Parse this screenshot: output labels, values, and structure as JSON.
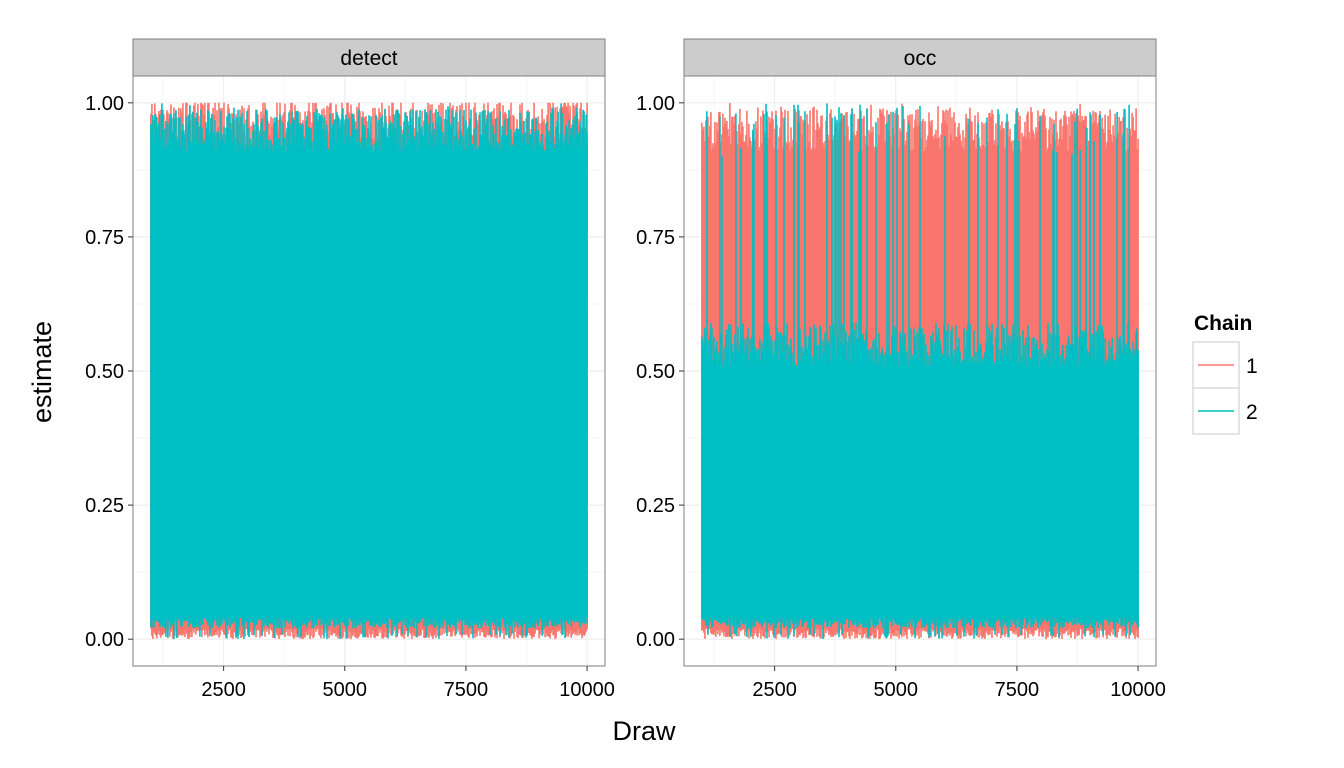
{
  "chart_data": {
    "type": "line",
    "facet_by": "parameter",
    "xlabel": "Draw",
    "ylabel": "estimate",
    "xlim": [
      630,
      10370
    ],
    "ylim": [
      -0.05,
      1.05
    ],
    "x_ticks": [
      2500,
      5000,
      7500,
      10000
    ],
    "y_ticks": [
      0.0,
      0.25,
      0.5,
      0.75,
      1.0
    ],
    "x_tick_labels": [
      "2500",
      "5000",
      "7500",
      "10000"
    ],
    "y_tick_labels": [
      "0.00",
      "0.25",
      "0.50",
      "0.75",
      "1.00"
    ],
    "grid": true,
    "draw_range": [
      1000,
      10000
    ],
    "legend": {
      "title": "Chain",
      "position": "right",
      "entries": [
        {
          "name": "1",
          "color": "#F8766D"
        },
        {
          "name": "2",
          "color": "#00BFC4"
        }
      ]
    },
    "panels": [
      {
        "label": "detect",
        "series": [
          {
            "name": "1",
            "color": "#F8766D",
            "min": 0.0,
            "max": 1.0,
            "typical_low": 0.0,
            "typical_high": 0.97
          },
          {
            "name": "2",
            "color": "#00BFC4",
            "min": 0.0,
            "max": 1.0,
            "typical_low": 0.02,
            "typical_high": 0.95
          }
        ]
      },
      {
        "label": "occ",
        "series": [
          {
            "name": "1",
            "color": "#F8766D",
            "min": 0.0,
            "max": 1.0,
            "typical_low": 0.0,
            "typical_high": 0.95
          },
          {
            "name": "2",
            "color": "#00BFC4",
            "min": 0.0,
            "max": 1.0,
            "typical_low": 0.02,
            "typical_high": 0.55
          }
        ]
      }
    ]
  }
}
